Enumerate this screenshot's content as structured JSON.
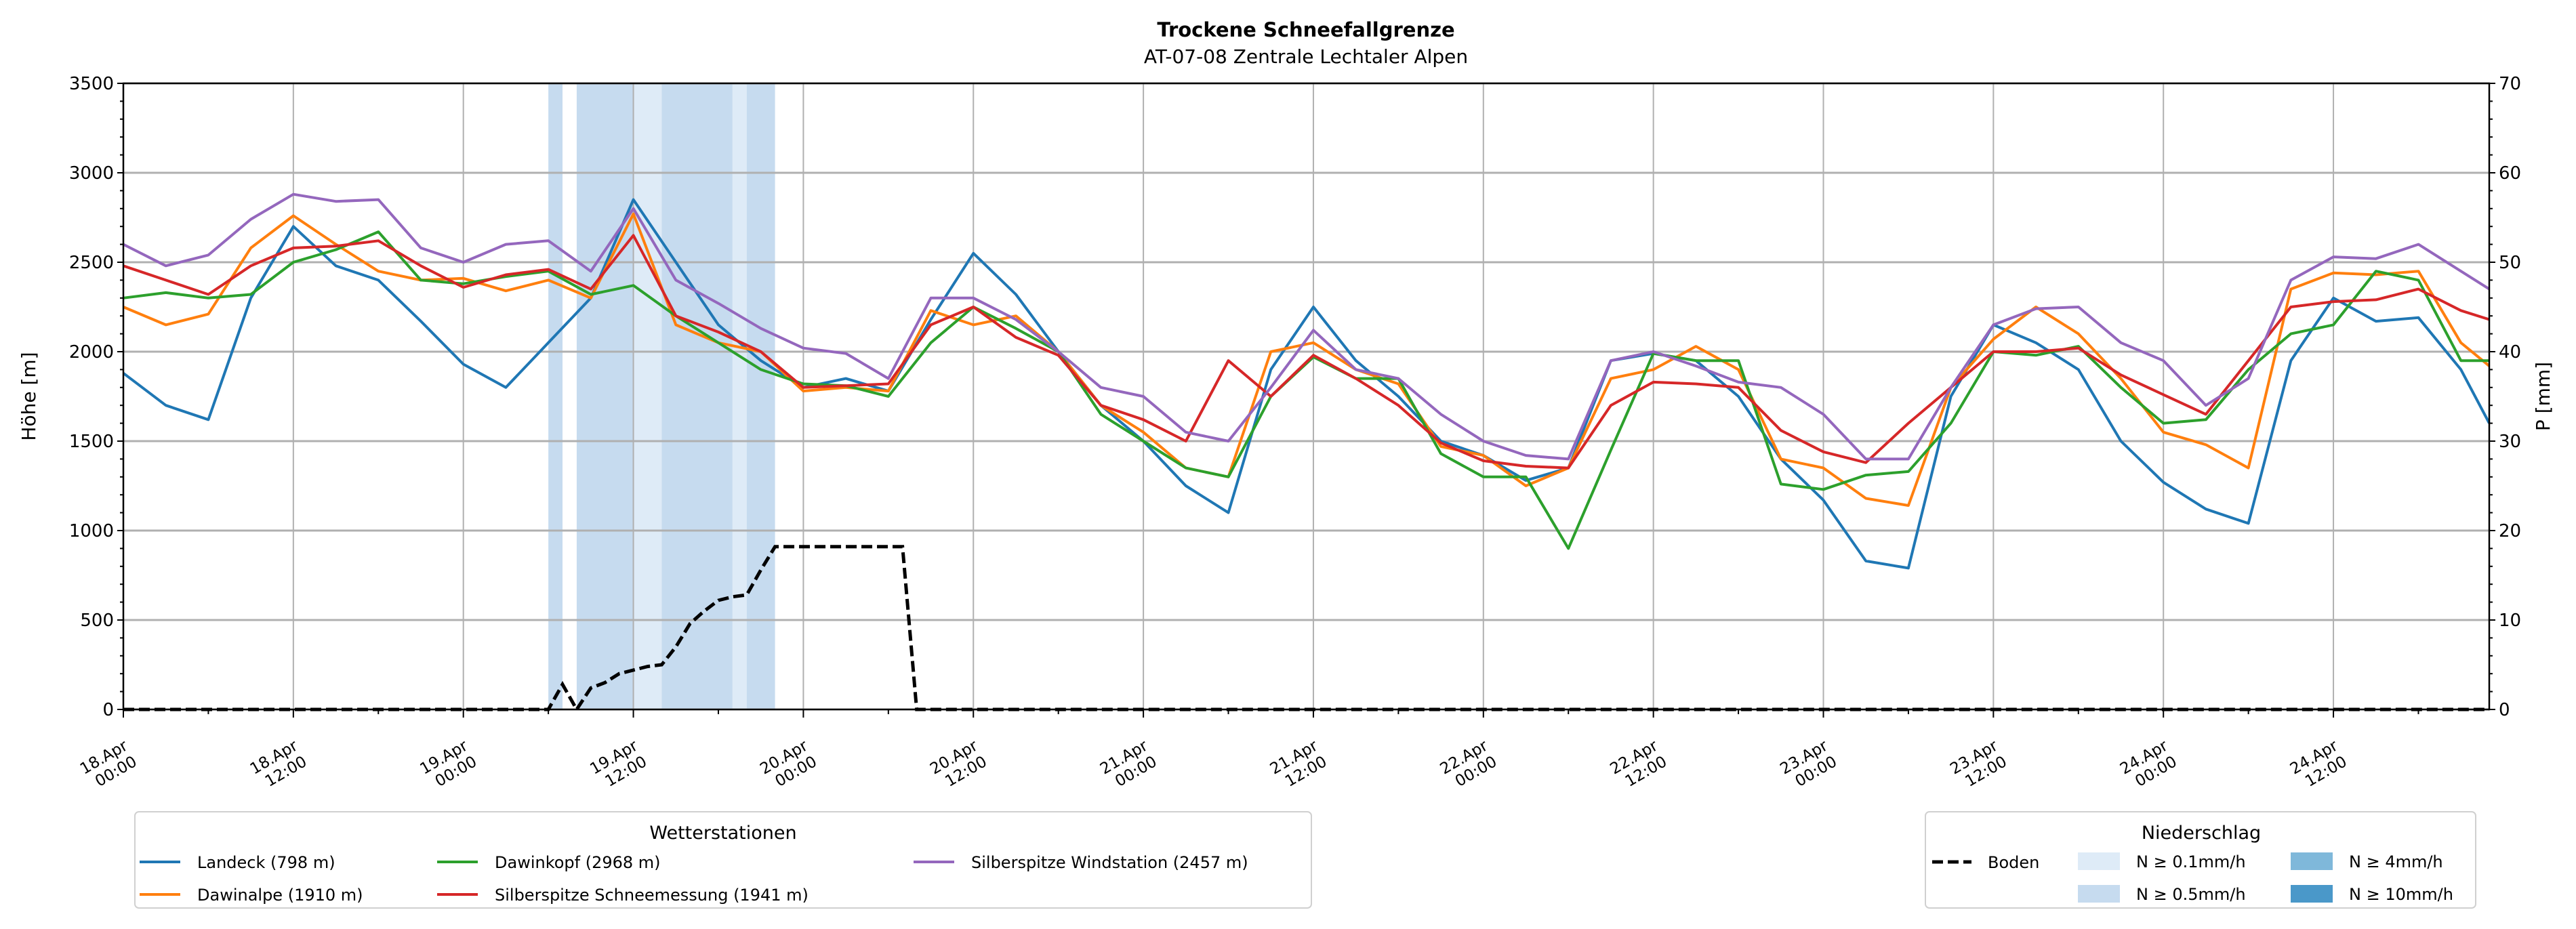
{
  "chart_data": {
    "type": "line",
    "title": "Trockene Schneefallgrenze",
    "subtitle": "AT-07-08 Zentrale Lechtaler Alpen",
    "ylabel": "Höhe [m]",
    "ylabel_right": "P [mm]",
    "ylim": [
      0,
      3500
    ],
    "ylim_right": [
      0,
      70
    ],
    "yticks": [
      0,
      500,
      1000,
      1500,
      2000,
      2500,
      3000,
      3500
    ],
    "yticks_right": [
      0,
      10,
      20,
      30,
      40,
      50,
      60,
      70
    ],
    "x_unit": "hours since 18.Apr 00:00",
    "xlim": [
      0,
      167
    ],
    "xtick_labels": [
      [
        "18.Apr",
        "00:00"
      ],
      [
        "18.Apr",
        "12:00"
      ],
      [
        "19.Apr",
        "00:00"
      ],
      [
        "19.Apr",
        "12:00"
      ],
      [
        "20.Apr",
        "00:00"
      ],
      [
        "20.Apr",
        "12:00"
      ],
      [
        "21.Apr",
        "00:00"
      ],
      [
        "21.Apr",
        "12:00"
      ],
      [
        "22.Apr",
        "00:00"
      ],
      [
        "22.Apr",
        "12:00"
      ],
      [
        "23.Apr",
        "00:00"
      ],
      [
        "23.Apr",
        "12:00"
      ],
      [
        "24.Apr",
        "00:00"
      ],
      [
        "24.Apr",
        "12:00"
      ]
    ],
    "grid": true,
    "x": [
      0,
      3,
      6,
      9,
      12,
      15,
      18,
      21,
      24,
      27,
      30,
      33,
      36,
      39,
      42,
      45,
      48,
      51,
      54,
      57,
      60,
      63,
      66,
      69,
      72,
      75,
      78,
      81,
      84,
      87,
      90,
      93,
      96,
      99,
      102,
      105,
      108,
      111,
      114,
      117,
      120,
      123,
      126,
      129,
      132,
      135,
      138,
      141,
      144,
      147,
      150,
      153,
      156,
      159,
      162,
      165,
      167
    ],
    "series": [
      {
        "name": "Landeck (798 m)",
        "color": "#1f77b4",
        "values": [
          1880,
          1700,
          1620,
          2300,
          2700,
          2480,
          2400,
          2170,
          1930,
          1800,
          2050,
          2300,
          2850,
          2500,
          2150,
          1950,
          1800,
          1850,
          1780,
          2180,
          2550,
          2320,
          2000,
          1700,
          1500,
          1250,
          1100,
          1900,
          2250,
          1950,
          1750,
          1500,
          1420,
          1280,
          1350,
          1950,
          1990,
          1950,
          1750,
          1400,
          1170,
          830,
          790,
          1750,
          2150,
          2050,
          1900,
          1500,
          1270,
          1120,
          1040,
          1950,
          2300,
          2170,
          2190,
          1900,
          1600
        ]
      },
      {
        "name": "Dawinalpe (1910 m)",
        "color": "#ff7f0e",
        "values": [
          2250,
          2150,
          2210,
          2580,
          2760,
          2600,
          2450,
          2400,
          2410,
          2340,
          2400,
          2300,
          2770,
          2150,
          2050,
          2000,
          1780,
          1800,
          1780,
          2230,
          2150,
          2200,
          2000,
          1700,
          1550,
          1350,
          1300,
          2000,
          2050,
          1900,
          1820,
          1470,
          1420,
          1250,
          1350,
          1850,
          1900,
          2030,
          1900,
          1400,
          1350,
          1180,
          1140,
          1800,
          2070,
          2250,
          2100,
          1850,
          1550,
          1480,
          1350,
          2350,
          2440,
          2430,
          2450,
          2050,
          1920
        ]
      },
      {
        "name": "Dawinkopf (2968 m)",
        "color": "#2ca02c",
        "values": [
          2300,
          2330,
          2300,
          2320,
          2500,
          2570,
          2670,
          2400,
          2380,
          2420,
          2450,
          2320,
          2370,
          2200,
          2050,
          1900,
          1820,
          1810,
          1750,
          2050,
          2250,
          2130,
          2000,
          1650,
          1500,
          1350,
          1300,
          1750,
          1970,
          1850,
          1850,
          1430,
          1300,
          1300,
          900,
          1450,
          1990,
          1950,
          1950,
          1260,
          1230,
          1310,
          1330,
          1600,
          2000,
          1980,
          2030,
          1800,
          1600,
          1620,
          1900,
          2100,
          2150,
          2450,
          2400,
          1950,
          1950
        ]
      },
      {
        "name": "Silberspitze Schneemessung (1941 m)",
        "color": "#d62728",
        "values": [
          2480,
          2400,
          2320,
          2480,
          2580,
          2590,
          2620,
          2480,
          2360,
          2430,
          2460,
          2350,
          2650,
          2200,
          2110,
          2000,
          1800,
          1810,
          1820,
          2150,
          2250,
          2080,
          1980,
          1700,
          1620,
          1500,
          1950,
          1750,
          1980,
          1850,
          1700,
          1490,
          1390,
          1360,
          1350,
          1700,
          1830,
          1820,
          1800,
          1560,
          1440,
          1380,
          1600,
          1800,
          2000,
          2000,
          2020,
          1870,
          1760,
          1650,
          1950,
          2250,
          2280,
          2290,
          2350,
          2230,
          2180
        ]
      },
      {
        "name": "Silberspitze Windstation (2457 m)",
        "color": "#9467bd",
        "values": [
          2600,
          2480,
          2540,
          2740,
          2880,
          2840,
          2850,
          2580,
          2500,
          2600,
          2620,
          2450,
          2800,
          2400,
          2270,
          2130,
          2020,
          1990,
          1850,
          2300,
          2300,
          2180,
          2000,
          1800,
          1750,
          1550,
          1500,
          1800,
          2120,
          1900,
          1850,
          1650,
          1500,
          1420,
          1400,
          1950,
          2000,
          1920,
          1830,
          1800,
          1650,
          1400,
          1400,
          1800,
          2150,
          2240,
          2250,
          2050,
          1950,
          1700,
          1850,
          2400,
          2530,
          2520,
          2600,
          2450,
          2350
        ]
      }
    ],
    "boden": {
      "name": "Boden",
      "color": "#000000",
      "x": [
        0,
        30,
        31,
        32,
        33,
        34,
        35,
        36,
        37,
        38,
        39,
        40,
        41,
        42,
        43,
        44,
        45,
        46,
        55,
        56,
        167
      ],
      "values": [
        0,
        0,
        140,
        0,
        120,
        150,
        200,
        220,
        240,
        250,
        350,
        480,
        550,
        610,
        630,
        640,
        780,
        910,
        910,
        0,
        0
      ]
    },
    "precip_classes": [
      {
        "label": "N ≥ 0.1mm/h",
        "color": "#deebf7"
      },
      {
        "label": "N ≥ 0.5mm/h",
        "color": "#c6dbef"
      },
      {
        "label": "N ≥ 4mm/h",
        "color": "#7fb8da"
      },
      {
        "label": "N ≥ 10mm/h",
        "color": "#4a98c9"
      }
    ],
    "precip_bands": [
      {
        "start": 30,
        "end": 31,
        "class": 1
      },
      {
        "start": 32,
        "end": 36,
        "class": 1
      },
      {
        "start": 36,
        "end": 38,
        "class": 0
      },
      {
        "start": 38,
        "end": 43,
        "class": 1
      },
      {
        "start": 43,
        "end": 44,
        "class": 0
      },
      {
        "start": 44,
        "end": 46,
        "class": 1
      }
    ],
    "legend_stations": {
      "title": "Wetterstationen",
      "placement": "bottom-left"
    },
    "legend_precip": {
      "title": "Niederschlag",
      "placement": "bottom-right"
    }
  }
}
